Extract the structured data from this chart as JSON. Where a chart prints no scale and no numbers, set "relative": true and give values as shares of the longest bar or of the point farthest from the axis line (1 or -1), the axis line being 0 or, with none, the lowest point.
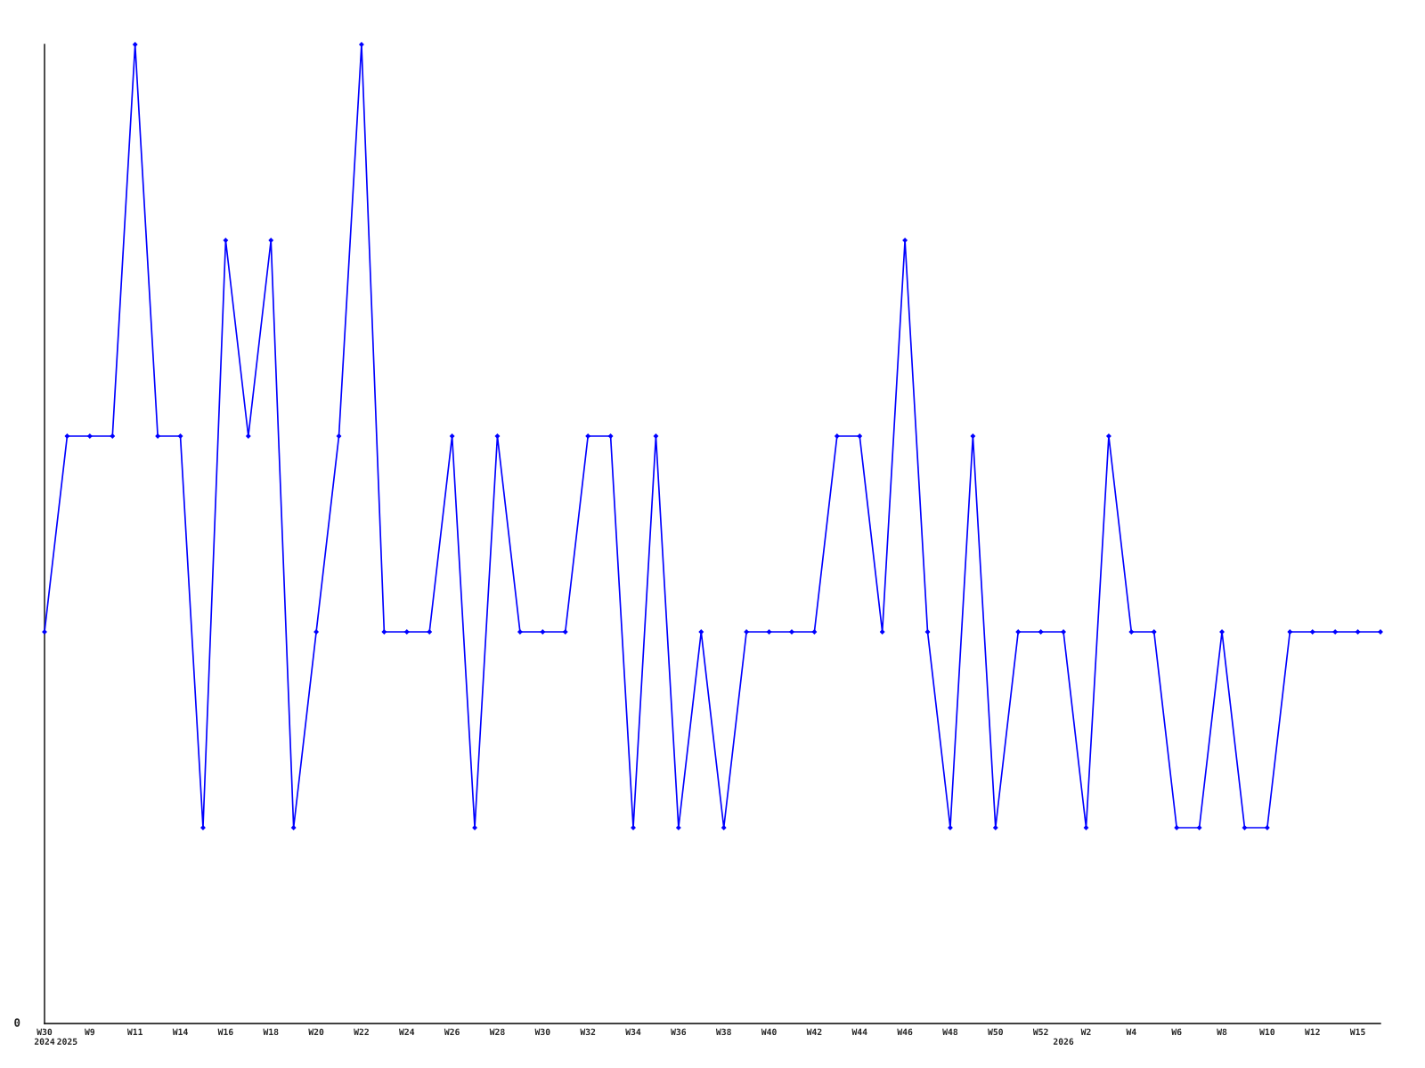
{
  "chart_data": {
    "type": "line",
    "relative": true,
    "categories": [
      "W30\n2024",
      "\n2025",
      "W9",
      null,
      "W11",
      null,
      "W14",
      null,
      "W16",
      null,
      "W18",
      null,
      "W20",
      null,
      "W22",
      null,
      "W24",
      null,
      "W26",
      null,
      "W28",
      null,
      "W30",
      null,
      "W32",
      null,
      "W34",
      null,
      "W36",
      null,
      "W38",
      null,
      "W40",
      null,
      "W42",
      null,
      "W44",
      null,
      "W46",
      null,
      "W48",
      null,
      "W50",
      null,
      "W52",
      "\n2026",
      "W2",
      null,
      "W4",
      null,
      "W6",
      null,
      "W8",
      null,
      "W10",
      null,
      "W12",
      null,
      "W15",
      null
    ],
    "series": [
      {
        "color": "#0000ff",
        "values": [
          0.4,
          0.6,
          0.6,
          0.6,
          1.0,
          0.6,
          0.6,
          0.2,
          0.8,
          0.6,
          0.8,
          0.2,
          0.4,
          0.6,
          1.0,
          0.4,
          0.4,
          0.4,
          0.6,
          0.2,
          0.6,
          0.4,
          0.4,
          0.4,
          0.6,
          0.6,
          0.2,
          0.6,
          0.2,
          0.4,
          0.2,
          0.4,
          0.4,
          0.4,
          0.4,
          0.6,
          0.6,
          0.4,
          0.8,
          0.4,
          0.2,
          0.6,
          0.2,
          0.4,
          0.4,
          0.4,
          0.2,
          0.6,
          0.4,
          0.4,
          0.2,
          0.2,
          0.4,
          0.2,
          0.2,
          0.4,
          0.4,
          0.4,
          0.4,
          0.4
        ]
      }
    ],
    "annotations": [
      "0"
    ],
    "marker": "diamond",
    "line_style": "solid",
    "grid": false,
    "legend": false
  }
}
